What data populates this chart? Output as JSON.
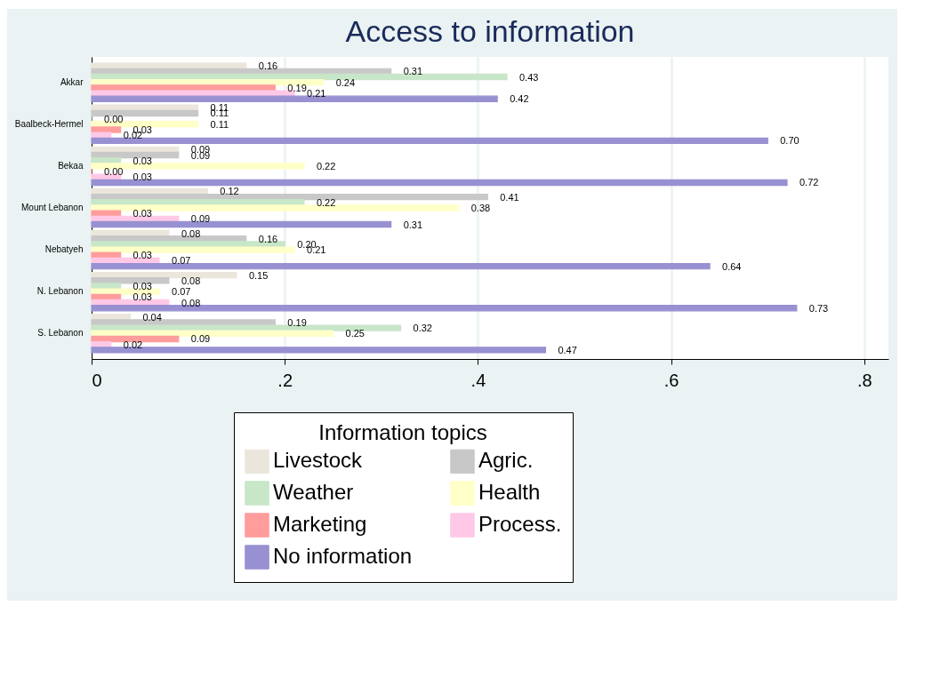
{
  "chart_data": {
    "type": "bar",
    "orientation": "horizontal",
    "title": "Access to information",
    "legend_title": "Information topics",
    "categories": [
      "Akkar",
      "Baalbeck-Hermel",
      "Bekaa",
      "Mount Lebanon",
      "Nebatyeh",
      "N. Lebanon",
      "S. Lebanon"
    ],
    "series": [
      {
        "name": "Livestock",
        "color": "#ebe6dc",
        "values": [
          0.16,
          0.11,
          0.09,
          0.12,
          0.08,
          0.15,
          0.04
        ],
        "value_labels": [
          "0.16",
          "0.11",
          "0.09",
          "0.12",
          "0.08",
          "0.15",
          "0.04"
        ]
      },
      {
        "name": "Agric.",
        "color": "#c8c8c8",
        "values": [
          0.31,
          0.11,
          0.09,
          0.41,
          0.16,
          0.08,
          0.19
        ],
        "value_labels": [
          "0.31",
          "0.11",
          "0.09",
          "0.41",
          "0.16",
          "0.08",
          "0.19"
        ]
      },
      {
        "name": "Weather",
        "color": "#c8e6c8",
        "values": [
          0.43,
          0.0,
          0.03,
          0.22,
          0.2,
          0.03,
          0.32
        ],
        "value_labels": [
          "0.43",
          "0.00",
          "0.03",
          "0.22",
          "0.20",
          "0.03",
          "0.32"
        ]
      },
      {
        "name": "Health",
        "color": "#ffffc8",
        "values": [
          0.24,
          0.11,
          0.22,
          0.38,
          0.21,
          0.07,
          0.25
        ],
        "value_labels": [
          "0.24",
          "0.11",
          "0.22",
          "0.38",
          "0.21",
          "0.07",
          "0.25"
        ]
      },
      {
        "name": "Marketing",
        "color": "#ff9c9c",
        "values": [
          0.19,
          0.03,
          0.0,
          0.03,
          0.03,
          0.03,
          0.09
        ],
        "value_labels": [
          "0.19",
          "0.03",
          "0.00",
          "0.03",
          "0.03",
          "0.03",
          "0.09"
        ]
      },
      {
        "name": "Process.",
        "color": "#ffc8e6",
        "values": [
          0.21,
          0.02,
          0.03,
          0.09,
          0.07,
          0.08,
          0.02
        ],
        "value_labels": [
          "0.21",
          "0.02",
          "0.03",
          "0.09",
          "0.07",
          "0.08",
          "0.02"
        ]
      },
      {
        "name": "No information",
        "color": "#9791d2",
        "values": [
          0.42,
          0.7,
          0.72,
          0.31,
          0.64,
          0.73,
          0.47
        ],
        "value_labels": [
          "0.42",
          "0.70",
          "0.72",
          "0.31",
          "0.64",
          "0.73",
          "0.47"
        ]
      }
    ],
    "xlim": [
      0,
      0.825
    ],
    "xticks": [
      0,
      {
        "value": 0.2,
        "label": ".2"
      },
      {
        "value": 0.4,
        "label": ".4"
      },
      {
        "value": 0.6,
        "label": ".6"
      },
      {
        "value": 0.8,
        "label": ".8"
      }
    ],
    "grid": "x",
    "legend": "bottom"
  }
}
